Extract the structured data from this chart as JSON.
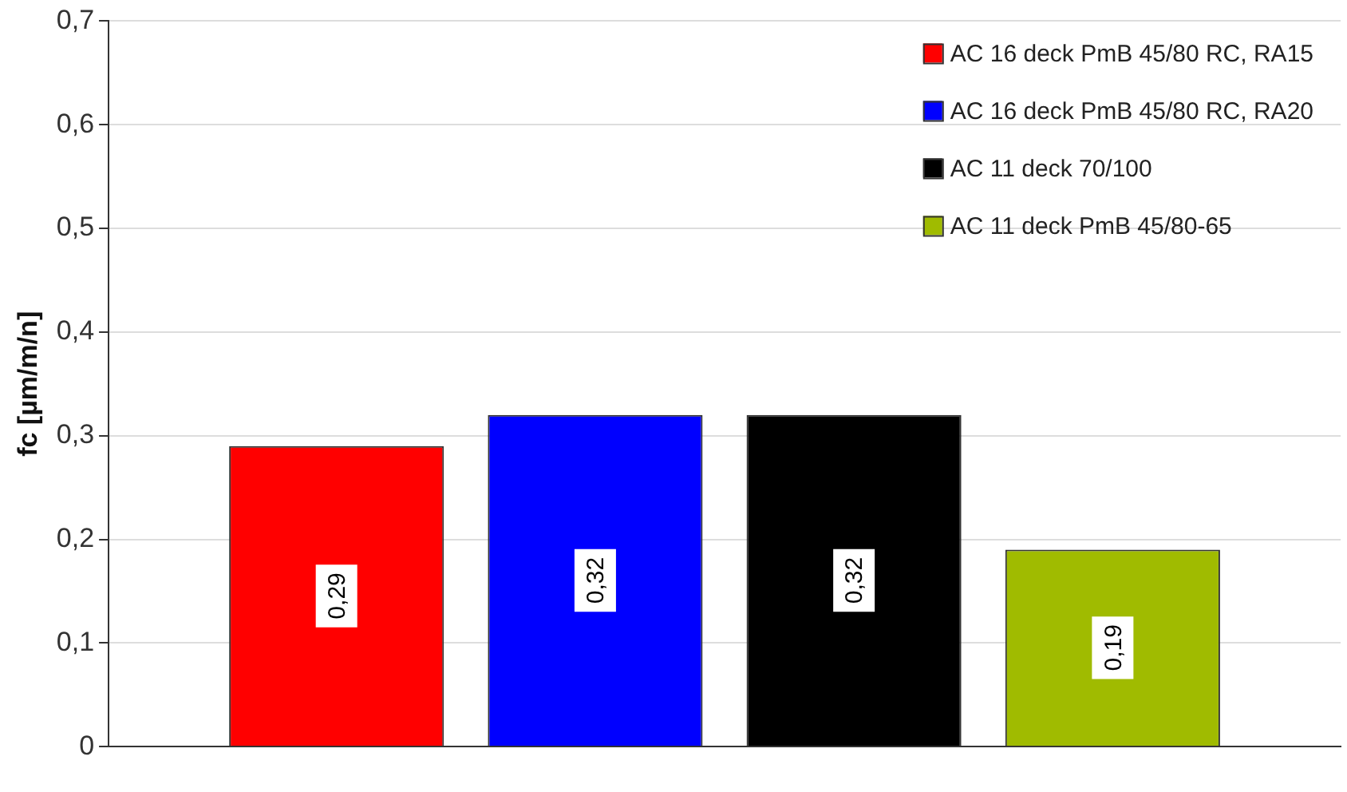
{
  "chart_data": {
    "type": "bar",
    "ylabel": "fc [µm/m/n]",
    "categories": [
      null
    ],
    "series": [
      {
        "name": "AC 16 deck PmB 45/80 RC, RA15",
        "color": "#ff0000",
        "values": [
          0.29
        ],
        "value_labels": [
          "0,29"
        ]
      },
      {
        "name": "AC 16 deck PmB 45/80 RC, RA20",
        "color": "#0000ff",
        "values": [
          0.32
        ],
        "value_labels": [
          "0,32"
        ]
      },
      {
        "name": "AC 11 deck 70/100",
        "color": "#000000",
        "values": [
          0.32
        ],
        "value_labels": [
          "0,32"
        ]
      },
      {
        "name": "AC 11 deck PmB 45/80-65",
        "color": "#a0bb00",
        "values": [
          0.19
        ],
        "value_labels": [
          "0,19"
        ]
      }
    ],
    "ylim": [
      0,
      0.7
    ],
    "yticks": [
      0,
      {
        "value": 0.1,
        "label": "0,1"
      },
      {
        "value": 0.2,
        "label": "0,2"
      },
      {
        "value": 0.3,
        "label": "0,3"
      },
      {
        "value": 0.4,
        "label": "0,4"
      },
      {
        "value": 0.5,
        "label": "0,5"
      },
      {
        "value": 0.6,
        "label": "0,6"
      },
      {
        "value": 0.7,
        "label": "0,7"
      }
    ],
    "grid": "y",
    "legend": "top right"
  }
}
